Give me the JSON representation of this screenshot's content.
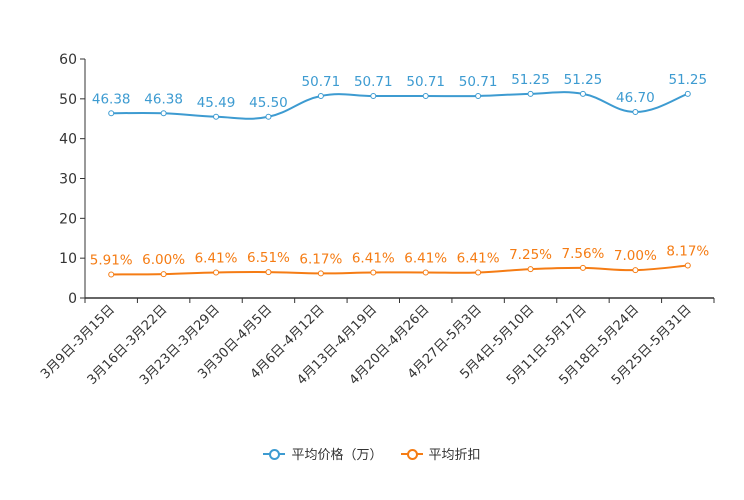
{
  "chart_data": {
    "type": "line",
    "categories": [
      "3月9日-3月15日",
      "3月16日-3月22日",
      "3月23日-3月29日",
      "3月30日-4月5日",
      "4月6日-4月12日",
      "4月13日-4月19日",
      "4月20日-4月26日",
      "4月27日-5月3日",
      "5月4日-5月10日",
      "5月11日-5月17日",
      "5月18日-5月24日",
      "5月25日-5月31日"
    ],
    "series": [
      {
        "name": "平均价格（万）",
        "color": "#3d9bd1",
        "values": [
          46.38,
          46.38,
          45.49,
          45.5,
          50.71,
          50.71,
          50.71,
          50.71,
          51.25,
          51.25,
          46.7,
          51.25
        ],
        "labels": [
          "46.38",
          "46.38",
          "45.49",
          "45.50",
          "50.71",
          "50.71",
          "50.71",
          "50.71",
          "51.25",
          "51.25",
          "46.70",
          "51.25"
        ]
      },
      {
        "name": "平均折扣",
        "color": "#f57c14",
        "values": [
          5.91,
          6.0,
          6.41,
          6.51,
          6.17,
          6.41,
          6.41,
          6.41,
          7.25,
          7.56,
          7.0,
          8.17
        ],
        "labels": [
          "5.91%",
          "6.00%",
          "6.41%",
          "6.51%",
          "6.17%",
          "6.41%",
          "6.41%",
          "6.41%",
          "7.25%",
          "7.56%",
          "7.00%",
          "8.17%"
        ]
      }
    ],
    "ylim": [
      0,
      60
    ],
    "yticks": [
      "0",
      "10",
      "20",
      "30",
      "40",
      "50",
      "60"
    ],
    "title": "",
    "xlabel": "",
    "ylabel": "",
    "grid": false,
    "legend_position": "bottom"
  }
}
